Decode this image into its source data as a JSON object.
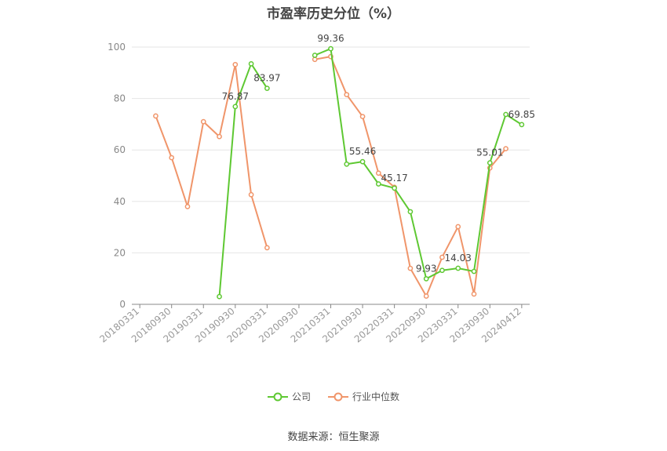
{
  "chart_data": {
    "type": "line",
    "title": "市盈率历史分位（%）",
    "ylim": [
      0,
      100
    ],
    "y_ticks": [
      "0",
      "20",
      "40",
      "60",
      "80",
      "100"
    ],
    "x_tick_labels": [
      "20180331",
      "20180930",
      "20190331",
      "20190930",
      "20200331",
      "20200930",
      "20210331",
      "20210930",
      "20220331",
      "20220930",
      "20230331",
      "20230930",
      "20240412"
    ],
    "grid": true,
    "legend_position": "bottom",
    "x": [
      "20180331",
      "20180630",
      "20180930",
      "20181231",
      "20190331",
      "20190630",
      "20190930",
      "20191231",
      "20200331",
      "20200630",
      "20200930",
      "20201231",
      "20210331",
      "20210630",
      "20210930",
      "20211231",
      "20220331",
      "20220630",
      "20220930",
      "20221231",
      "20230331",
      "20230630",
      "20230930",
      "20231231",
      "20240412"
    ],
    "series": [
      {
        "name": "公司",
        "color": "#5ec832",
        "values": [
          null,
          null,
          null,
          null,
          null,
          3,
          76.87,
          93.5,
          83.97,
          null,
          null,
          96.8,
          99.36,
          54.5,
          55.46,
          46.8,
          45.17,
          36,
          9.93,
          13.2,
          14.03,
          12.8,
          55.01,
          73.8,
          69.85
        ],
        "labels": {
          "6": "76.87",
          "8": "83.97",
          "12": "99.36",
          "14": "55.46",
          "16": "45.17",
          "18": "9.93",
          "20": "14.03",
          "22": "55.01",
          "24": "69.85"
        }
      },
      {
        "name": "行业中位数",
        "color": "#f0956a",
        "values": [
          null,
          73.2,
          57,
          38,
          71,
          65.2,
          93.2,
          42.6,
          22,
          null,
          null,
          95.2,
          96.3,
          81.5,
          73,
          51,
          45.5,
          14,
          3.2,
          18.3,
          30.2,
          4,
          53,
          60.5,
          null
        ]
      }
    ]
  },
  "source_text": "数据来源：恒生聚源"
}
